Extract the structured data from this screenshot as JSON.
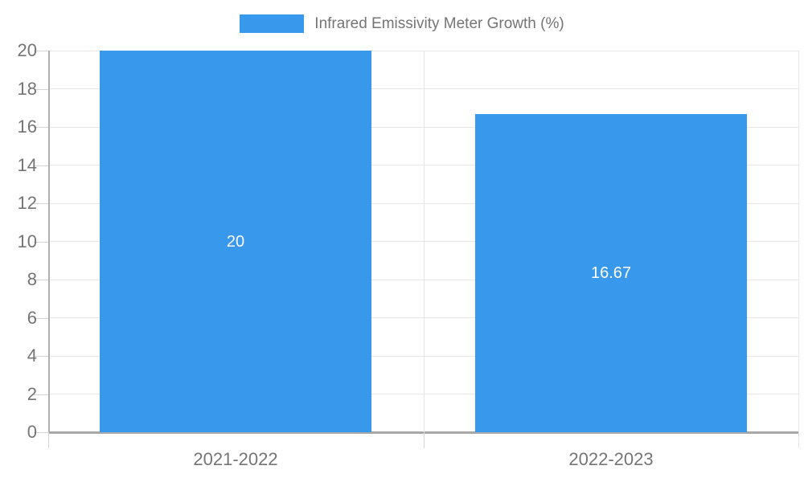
{
  "legend": {
    "label": "Infrared Emissivity Meter Growth (%)"
  },
  "colors": {
    "bar": "#3898ec",
    "grid": "#e6e6e6",
    "tick": "#d4d4d4",
    "axis_y": "#b0b0b0",
    "axis_x": "#a8a8a8",
    "boundary_right": "#e6e6e6",
    "tick_text": "#757575",
    "bar_label_text": "#ffffff"
  },
  "chart_data": {
    "type": "bar",
    "title": "Infrared Emissivity Meter Growth (%)",
    "categories": [
      "2021-2022",
      "2022-2023"
    ],
    "values": [
      20,
      16.67
    ],
    "value_labels": [
      "20",
      "16.67"
    ],
    "xlabel": "",
    "ylabel": "",
    "ylim": [
      0,
      20
    ],
    "ytick_step": 2,
    "ytick_labels": [
      "0",
      "2",
      "4",
      "6",
      "8",
      "10",
      "12",
      "14",
      "16",
      "18",
      "20"
    ],
    "grid": true,
    "legend_position": "top",
    "bar_label_position": "center"
  }
}
